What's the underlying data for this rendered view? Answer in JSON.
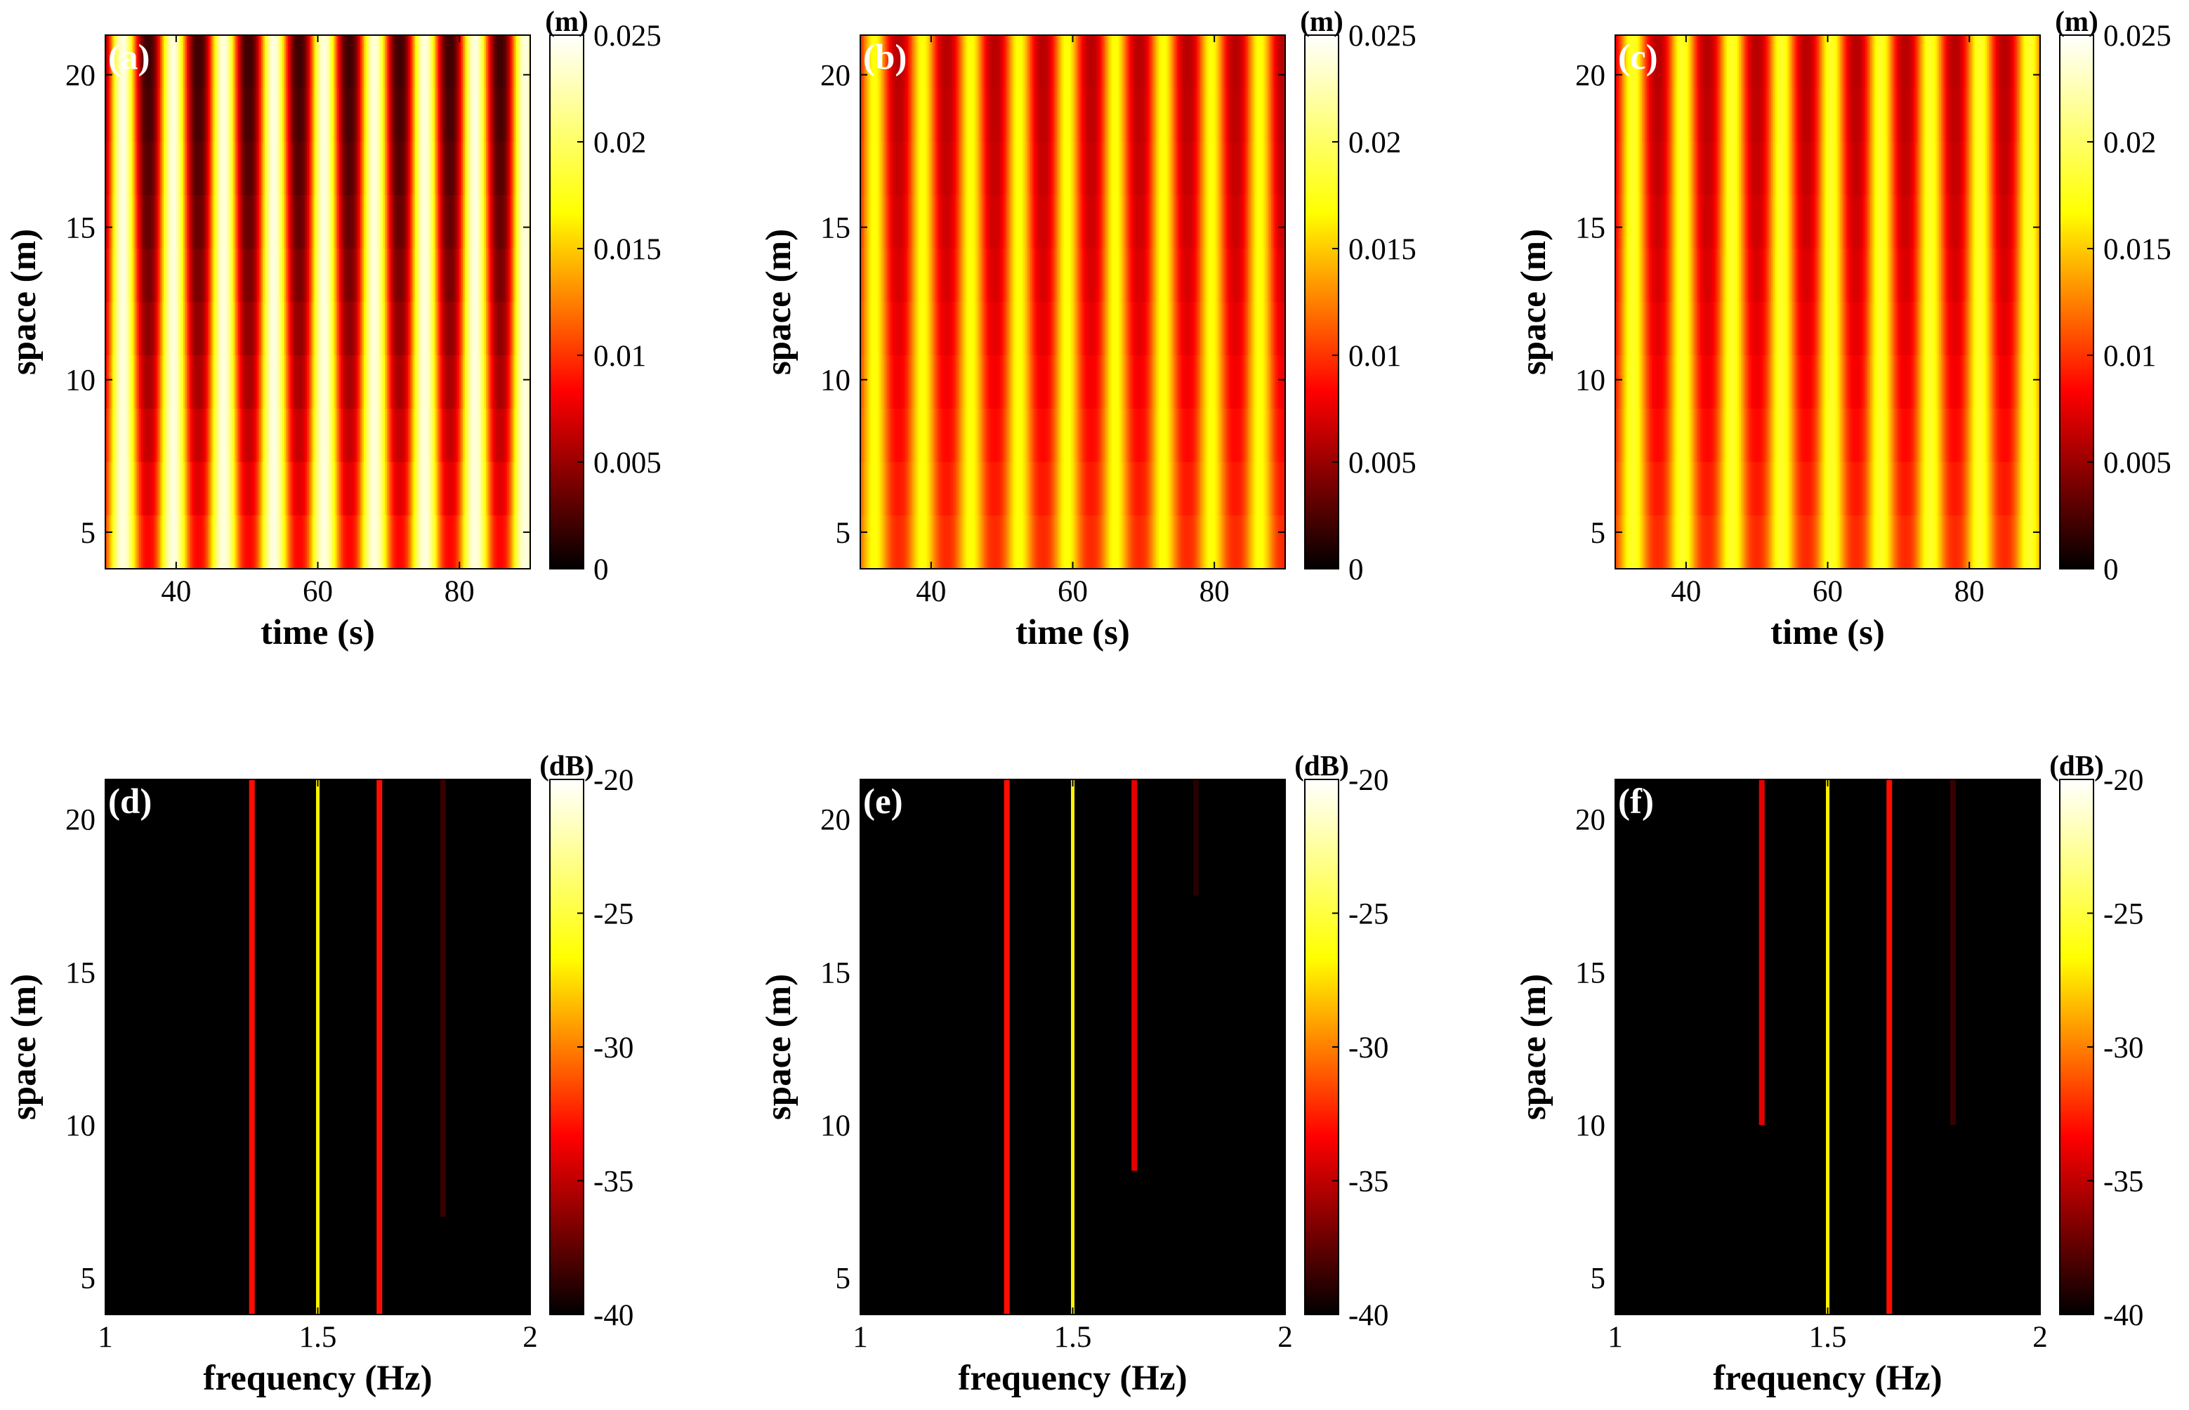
{
  "colormap": [
    "#000000",
    "#ff0000",
    "#ffff00",
    "#ffffff"
  ],
  "chart_data": [
    {
      "id": "a",
      "type": "heatmap",
      "label": "(a)",
      "xlabel": "time (s)",
      "ylabel": "space (m)",
      "xlim": [
        30,
        90
      ],
      "ylim": [
        3.8,
        21.3
      ],
      "xticks": [
        40,
        60,
        80
      ],
      "yticks": [
        5,
        10,
        15,
        20
      ],
      "colorbar": {
        "unit": "(m)",
        "range": [
          0,
          0.025
        ],
        "ticks": [
          0,
          0.005,
          0.01,
          0.015,
          0.02,
          0.025
        ],
        "tick_labels": [
          "0",
          "0.005",
          "0.01",
          "0.015",
          "0.02",
          "0.025"
        ]
      },
      "description_values": {
        "period_s": 7.1,
        "first_crest_s": 32.5,
        "crest_max": 0.024,
        "trough_min": 0.002,
        "trough_max_low_space": 0.009
      }
    },
    {
      "id": "b",
      "type": "heatmap",
      "label": "(b)",
      "xlabel": "time (s)",
      "ylabel": "space (m)",
      "xlim": [
        30,
        90
      ],
      "ylim": [
        3.8,
        21.3
      ],
      "xticks": [
        40,
        60,
        80
      ],
      "yticks": [
        5,
        10,
        15,
        20
      ],
      "colorbar": {
        "unit": "(m)",
        "range": [
          0,
          0.025
        ],
        "ticks": [
          0,
          0.005,
          0.01,
          0.015,
          0.02,
          0.025
        ],
        "tick_labels": [
          "0",
          "0.005",
          "0.01",
          "0.015",
          "0.02",
          "0.025"
        ]
      },
      "description_values": {
        "period_s": 6.8,
        "first_crest_s": 32.0,
        "crest_max": 0.017,
        "trough_min": 0.006,
        "trough_max_low_space": 0.01
      }
    },
    {
      "id": "c",
      "type": "heatmap",
      "label": "(c)",
      "xlabel": "time (s)",
      "ylabel": "space (m)",
      "xlim": [
        30,
        90
      ],
      "ylim": [
        3.8,
        21.3
      ],
      "xticks": [
        40,
        60,
        80
      ],
      "yticks": [
        5,
        10,
        15,
        20
      ],
      "colorbar": {
        "unit": "(m)",
        "range": [
          0,
          0.025
        ],
        "ticks": [
          0,
          0.005,
          0.01,
          0.015,
          0.02,
          0.025
        ],
        "tick_labels": [
          "0",
          "0.005",
          "0.01",
          "0.015",
          "0.02",
          "0.025"
        ]
      },
      "description_values": {
        "period_s": 7.0,
        "first_crest_s": 32.5,
        "crest_max": 0.018,
        "trough_min": 0.006,
        "trough_max_low_space": 0.01
      }
    },
    {
      "id": "d",
      "type": "heatmap",
      "label": "(d)",
      "xlabel": "frequency (Hz)",
      "ylabel": "space (m)",
      "xlim": [
        1,
        2
      ],
      "ylim": [
        3.8,
        21.3
      ],
      "xticks": [
        1,
        1.5,
        2
      ],
      "yticks": [
        5,
        10,
        15,
        20
      ],
      "colorbar": {
        "unit": "(dB)",
        "range": [
          -40,
          -20
        ],
        "ticks": [
          -40,
          -35,
          -30,
          -25,
          -20
        ],
        "tick_labels": [
          "-40",
          "-35",
          "-30",
          "-25",
          "-20"
        ]
      },
      "lines": [
        {
          "freq_hz": 1.345,
          "level_db": -33,
          "from_space_m": 3.8
        },
        {
          "freq_hz": 1.5,
          "level_db": -27,
          "from_space_m": 3.8
        },
        {
          "freq_hz": 1.645,
          "level_db": -33,
          "from_space_m": 3.8
        },
        {
          "freq_hz": 1.795,
          "level_db": -38.5,
          "from_space_m": 7
        }
      ]
    },
    {
      "id": "e",
      "type": "heatmap",
      "label": "(e)",
      "xlabel": "frequency (Hz)",
      "ylabel": "space (m)",
      "xlim": [
        1,
        2
      ],
      "ylim": [
        3.8,
        21.3
      ],
      "xticks": [
        1,
        1.5,
        2
      ],
      "yticks": [
        5,
        10,
        15,
        20
      ],
      "colorbar": {
        "unit": "(dB)",
        "range": [
          -40,
          -20
        ],
        "ticks": [
          -40,
          -35,
          -30,
          -25,
          -20
        ],
        "tick_labels": [
          "-40",
          "-35",
          "-30",
          "-25",
          "-20"
        ]
      },
      "lines": [
        {
          "freq_hz": 1.345,
          "level_db": -33,
          "from_space_m": 3.8
        },
        {
          "freq_hz": 1.5,
          "level_db": -27,
          "from_space_m": 3.8
        },
        {
          "freq_hz": 1.645,
          "level_db": -34,
          "from_space_m": 8.5
        },
        {
          "freq_hz": 1.79,
          "level_db": -39,
          "from_space_m": 17.5
        }
      ]
    },
    {
      "id": "f",
      "type": "heatmap",
      "label": "(f)",
      "xlabel": "frequency (Hz)",
      "ylabel": "space (m)",
      "xlim": [
        1,
        2
      ],
      "ylim": [
        3.8,
        21.3
      ],
      "xticks": [
        1,
        1.5,
        2
      ],
      "yticks": [
        5,
        10,
        15,
        20
      ],
      "colorbar": {
        "unit": "(dB)",
        "range": [
          -40,
          -20
        ],
        "ticks": [
          -40,
          -35,
          -30,
          -25,
          -20
        ],
        "tick_labels": [
          "-40",
          "-35",
          "-30",
          "-25",
          "-20"
        ]
      },
      "lines": [
        {
          "freq_hz": 1.345,
          "level_db": -34,
          "from_space_m": 10
        },
        {
          "freq_hz": 1.5,
          "level_db": -27,
          "from_space_m": 3.8
        },
        {
          "freq_hz": 1.645,
          "level_db": -33,
          "from_space_m": 3.8
        },
        {
          "freq_hz": 1.795,
          "level_db": -38.5,
          "from_space_m": 10
        }
      ]
    }
  ]
}
